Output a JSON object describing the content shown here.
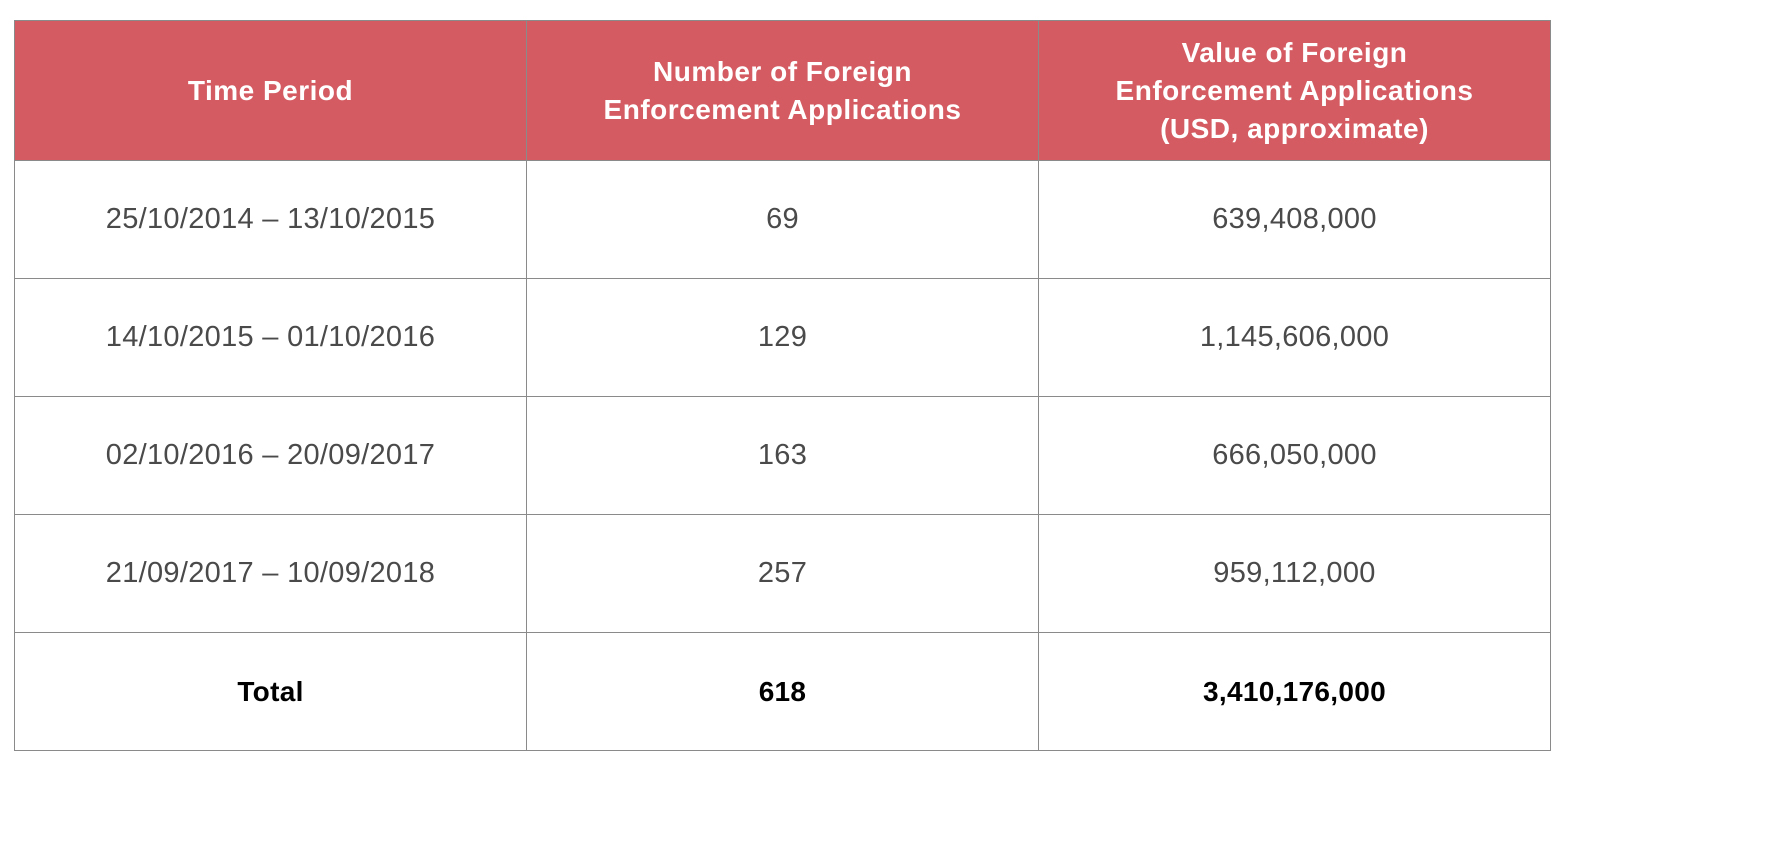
{
  "colors": {
    "header_background": "#d45b61",
    "header_text": "#ffffff",
    "body_text": "#4a4a4a",
    "total_text": "#000000",
    "border": "#8a8a8a"
  },
  "table": {
    "headers": [
      [
        "Time Period"
      ],
      [
        "Number of Foreign",
        "Enforcement Applications"
      ],
      [
        "Value of Foreign",
        "Enforcement Applications",
        "(USD, approximate)"
      ]
    ],
    "rows": [
      [
        "25/10/2014 – 13/10/2015",
        "69",
        "639,408,000"
      ],
      [
        "14/10/2015 – 01/10/2016",
        "129",
        "1,145,606,000"
      ],
      [
        "02/10/2016 – 20/09/2017",
        "163",
        "666,050,000"
      ],
      [
        "21/09/2017 – 10/09/2018",
        "257",
        "959,112,000"
      ]
    ],
    "total": [
      "Total",
      "618",
      "3,410,176,000"
    ]
  }
}
